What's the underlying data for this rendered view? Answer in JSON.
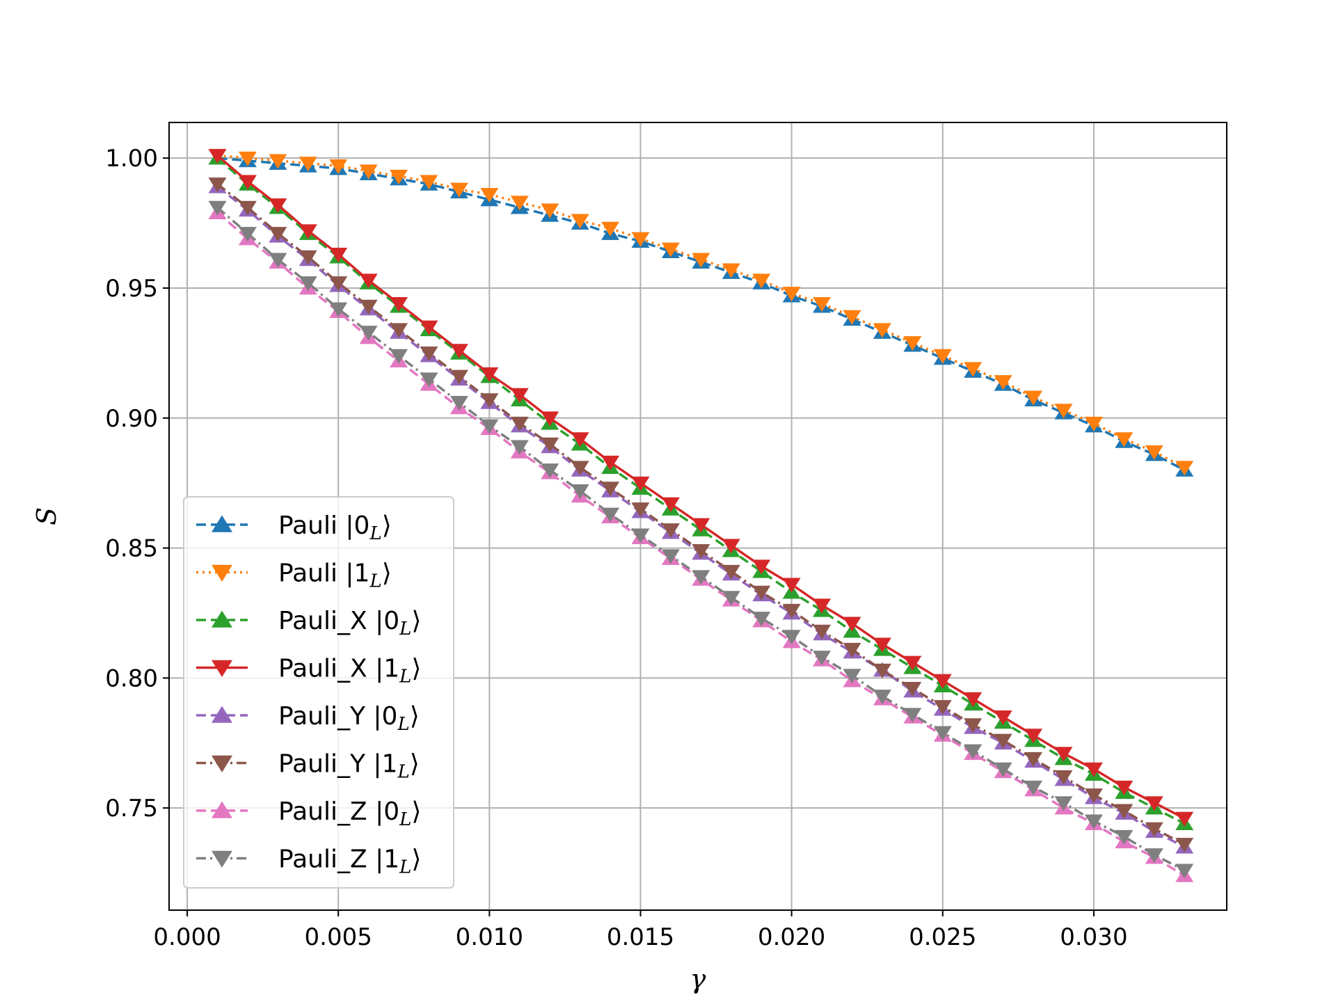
{
  "chart_data": {
    "type": "line",
    "title": "",
    "xlabel": "γ",
    "ylabel": "S",
    "xlim": [
      -0.0006,
      0.0344
    ],
    "ylim": [
      0.7107,
      1.0137
    ],
    "grid": true,
    "legend_position": "lower-left",
    "x_ticks": [
      0.0,
      0.005,
      0.01,
      0.015,
      0.02,
      0.025,
      0.03
    ],
    "x_tick_labels": [
      "0.000",
      "0.005",
      "0.010",
      "0.015",
      "0.020",
      "0.025",
      "0.030"
    ],
    "y_ticks": [
      0.75,
      0.8,
      0.85,
      0.9,
      0.95,
      1.0
    ],
    "y_tick_labels": [
      "0.75",
      "0.80",
      "0.85",
      "0.90",
      "0.95",
      "1.00"
    ],
    "x": [
      0.001,
      0.002,
      0.003,
      0.004,
      0.005,
      0.006,
      0.007,
      0.008,
      0.009,
      0.01,
      0.011,
      0.012,
      0.013,
      0.014,
      0.015,
      0.016,
      0.017,
      0.018,
      0.019,
      0.02,
      0.021,
      0.022,
      0.023,
      0.024,
      0.025,
      0.026,
      0.027,
      0.028,
      0.029,
      0.03,
      0.031,
      0.032,
      0.033
    ],
    "series": [
      {
        "label_main": "Pauli ",
        "label_ket": "0",
        "color": "#1f77b4",
        "marker": "triangle-up",
        "linestyle": "dashed",
        "values": [
          1.0,
          0.999,
          0.998,
          0.997,
          0.996,
          0.994,
          0.992,
          0.99,
          0.987,
          0.984,
          0.981,
          0.978,
          0.975,
          0.971,
          0.968,
          0.964,
          0.96,
          0.956,
          0.952,
          0.947,
          0.943,
          0.938,
          0.933,
          0.928,
          0.923,
          0.918,
          0.913,
          0.907,
          0.902,
          0.897,
          0.891,
          0.886,
          0.88
        ]
      },
      {
        "label_main": "Pauli ",
        "label_ket": "1",
        "color": "#ff7f0e",
        "marker": "triangle-down",
        "linestyle": "dotted",
        "values": [
          1.001,
          1.0,
          0.999,
          0.998,
          0.997,
          0.995,
          0.993,
          0.991,
          0.988,
          0.986,
          0.983,
          0.98,
          0.976,
          0.973,
          0.969,
          0.965,
          0.961,
          0.957,
          0.953,
          0.948,
          0.944,
          0.939,
          0.934,
          0.929,
          0.924,
          0.919,
          0.914,
          0.908,
          0.903,
          0.898,
          0.892,
          0.887,
          0.881
        ]
      },
      {
        "label_main": "Pauli_X ",
        "label_ket": "0",
        "color": "#2ca02c",
        "marker": "triangle-up",
        "linestyle": "dashed",
        "values": [
          1.0,
          0.99,
          0.981,
          0.971,
          0.962,
          0.952,
          0.943,
          0.934,
          0.925,
          0.916,
          0.907,
          0.898,
          0.89,
          0.881,
          0.873,
          0.865,
          0.857,
          0.849,
          0.841,
          0.833,
          0.826,
          0.818,
          0.811,
          0.804,
          0.797,
          0.79,
          0.783,
          0.776,
          0.769,
          0.763,
          0.756,
          0.75,
          0.744
        ]
      },
      {
        "label_main": "Pauli_X ",
        "label_ket": "1",
        "color": "#d62728",
        "marker": "triangle-down",
        "linestyle": "solid",
        "values": [
          1.001,
          0.991,
          0.982,
          0.972,
          0.963,
          0.953,
          0.944,
          0.935,
          0.926,
          0.917,
          0.909,
          0.9,
          0.892,
          0.883,
          0.875,
          0.867,
          0.859,
          0.851,
          0.843,
          0.836,
          0.828,
          0.821,
          0.813,
          0.806,
          0.799,
          0.792,
          0.785,
          0.778,
          0.771,
          0.765,
          0.758,
          0.752,
          0.746
        ]
      },
      {
        "label_main": "Pauli_Y ",
        "label_ket": "0",
        "color": "#9467bd",
        "marker": "triangle-up",
        "linestyle": "dashed",
        "values": [
          0.989,
          0.98,
          0.97,
          0.961,
          0.951,
          0.942,
          0.933,
          0.924,
          0.915,
          0.906,
          0.897,
          0.889,
          0.88,
          0.872,
          0.864,
          0.856,
          0.848,
          0.84,
          0.832,
          0.825,
          0.817,
          0.81,
          0.803,
          0.795,
          0.788,
          0.781,
          0.775,
          0.768,
          0.761,
          0.754,
          0.748,
          0.741,
          0.735
        ]
      },
      {
        "label_main": "Pauli_Y ",
        "label_ket": "1",
        "color": "#8c564b",
        "marker": "triangle-down",
        "linestyle": "dashdot",
        "values": [
          0.99,
          0.981,
          0.971,
          0.962,
          0.952,
          0.943,
          0.934,
          0.925,
          0.916,
          0.907,
          0.898,
          0.89,
          0.881,
          0.873,
          0.865,
          0.857,
          0.849,
          0.841,
          0.833,
          0.826,
          0.818,
          0.811,
          0.803,
          0.796,
          0.789,
          0.782,
          0.776,
          0.769,
          0.762,
          0.755,
          0.749,
          0.742,
          0.736
        ]
      },
      {
        "label_main": "Pauli_Z ",
        "label_ket": "0",
        "color": "#e377c2",
        "marker": "triangle-up",
        "linestyle": "dashed",
        "values": [
          0.979,
          0.969,
          0.96,
          0.95,
          0.941,
          0.931,
          0.922,
          0.913,
          0.904,
          0.896,
          0.887,
          0.879,
          0.87,
          0.862,
          0.854,
          0.846,
          0.838,
          0.83,
          0.822,
          0.814,
          0.807,
          0.799,
          0.792,
          0.785,
          0.778,
          0.771,
          0.764,
          0.757,
          0.75,
          0.744,
          0.737,
          0.731,
          0.724
        ]
      },
      {
        "label_main": "Pauli_Z ",
        "label_ket": "1",
        "color": "#7f7f7f",
        "marker": "triangle-down",
        "linestyle": "dashdot",
        "values": [
          0.981,
          0.971,
          0.961,
          0.952,
          0.942,
          0.933,
          0.924,
          0.915,
          0.906,
          0.897,
          0.889,
          0.88,
          0.872,
          0.863,
          0.855,
          0.847,
          0.839,
          0.831,
          0.823,
          0.816,
          0.808,
          0.801,
          0.793,
          0.786,
          0.779,
          0.772,
          0.765,
          0.758,
          0.752,
          0.745,
          0.739,
          0.732,
          0.726
        ]
      }
    ]
  }
}
